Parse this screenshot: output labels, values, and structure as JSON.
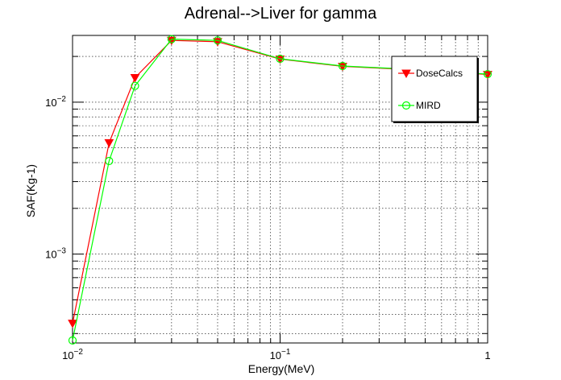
{
  "chart_data": {
    "type": "line",
    "title": "Adrenal-->Liver for gamma",
    "xlabel": "Energy(MeV)",
    "ylabel": "SAF(Kg-1)",
    "xscale": "log",
    "yscale": "log",
    "xlim": [
      0.01,
      1.0
    ],
    "ylim": [
      0.00026,
      0.0275
    ],
    "grid": true,
    "legend_position": "top-right",
    "x_ticks": [
      {
        "value": 0.01,
        "base": "10",
        "exp": "−2"
      },
      {
        "value": 0.1,
        "base": "10",
        "exp": "−1"
      },
      {
        "value": 1.0,
        "base": "1",
        "exp": ""
      }
    ],
    "y_ticks": [
      {
        "value": 0.001,
        "base": "10",
        "exp": "−3"
      },
      {
        "value": 0.01,
        "base": "10",
        "exp": "−2"
      }
    ],
    "series": [
      {
        "name": "DoseCalcs",
        "color": "#ff0000",
        "marker": "triangle-down",
        "x": [
          0.01,
          0.015,
          0.02,
          0.03,
          0.05,
          0.1,
          0.2,
          0.5,
          1.0
        ],
        "y": [
          0.00035,
          0.0054,
          0.0145,
          0.0255,
          0.025,
          0.0192,
          0.0172,
          0.0162,
          0.0152
        ]
      },
      {
        "name": "MIRD",
        "color": "#00ff00",
        "marker": "open-circle",
        "x": [
          0.01,
          0.015,
          0.02,
          0.03,
          0.05,
          0.1,
          0.2,
          0.5,
          1.0
        ],
        "y": [
          0.00027,
          0.0041,
          0.0128,
          0.026,
          0.0255,
          0.0193,
          0.0173,
          0.0163,
          0.0153
        ]
      }
    ]
  }
}
